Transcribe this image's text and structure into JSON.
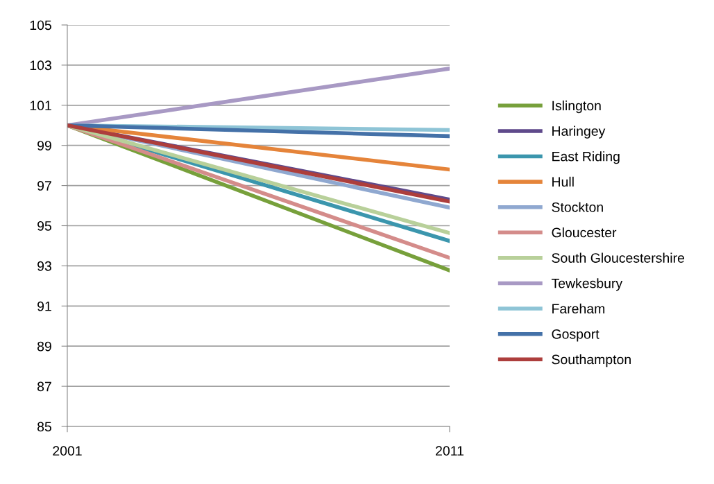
{
  "chart_data": {
    "type": "line",
    "x": [
      2001,
      2011
    ],
    "xlim": [
      2001,
      2011
    ],
    "xticks": [
      2001,
      2011
    ],
    "ylim": [
      85,
      105
    ],
    "yticks": [
      85,
      87,
      89,
      91,
      93,
      95,
      97,
      99,
      101,
      103,
      105
    ],
    "grid": "y",
    "legend": "right",
    "marker": "none",
    "line_style": "solid",
    "series": [
      {
        "name": "Islington",
        "color": "#77a03b",
        "values": [
          100,
          92.77
        ]
      },
      {
        "name": "Haringey",
        "color": "#5f4a8b",
        "values": [
          100,
          96.3
        ]
      },
      {
        "name": "East Riding",
        "color": "#3b96ad",
        "values": [
          100,
          94.24
        ]
      },
      {
        "name": "Hull",
        "color": "#e5843a",
        "values": [
          100,
          97.8
        ]
      },
      {
        "name": "Stockton",
        "color": "#8fa8d0",
        "values": [
          100,
          95.9
        ]
      },
      {
        "name": "Gloucester",
        "color": "#d48c8a",
        "values": [
          100,
          93.4
        ]
      },
      {
        "name": "South Gloucestershire",
        "color": "#b8d09a",
        "values": [
          100,
          94.63
        ]
      },
      {
        "name": "Tewkesbury",
        "color": "#a899c4",
        "values": [
          100,
          102.83
        ]
      },
      {
        "name": "Fareham",
        "color": "#8ec4d6",
        "values": [
          100,
          99.77
        ]
      },
      {
        "name": "Gosport",
        "color": "#4471a8",
        "values": [
          100,
          99.46
        ]
      },
      {
        "name": "Southampton",
        "color": "#ad3e3c",
        "values": [
          100,
          96.2
        ]
      }
    ]
  }
}
